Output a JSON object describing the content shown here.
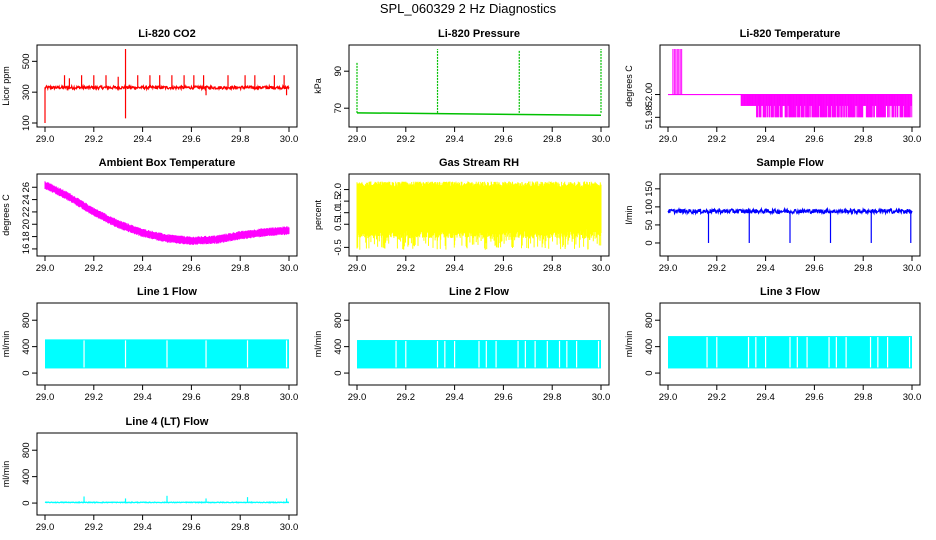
{
  "title": "SPL_060329  2 Hz Diagnostics",
  "chart_data": [
    {
      "type": "line",
      "title": "Li-820 CO2",
      "ylabel": "Licor ppm",
      "color": "#ff0000",
      "xlim": [
        29.0,
        30.0
      ],
      "ylim": [
        100,
        580
      ],
      "yticks": [
        "100",
        "300",
        "500"
      ],
      "ytick_values": [
        100,
        300,
        500
      ],
      "xticks": [
        "29.0",
        "29.2",
        "29.4",
        "29.6",
        "29.8",
        "30.0"
      ],
      "series": [
        {
          "kind": "baseline_spikes",
          "base": 330,
          "noise": 10,
          "spikes_up": [
            [
              29.08,
              410
            ],
            [
              29.1,
              390
            ],
            [
              29.15,
              410
            ],
            [
              29.2,
              410
            ],
            [
              29.25,
              410
            ],
            [
              29.3,
              400
            ],
            [
              29.33,
              580
            ],
            [
              29.38,
              410
            ],
            [
              29.43,
              410
            ],
            [
              29.47,
              410
            ],
            [
              29.52,
              410
            ],
            [
              29.57,
              410
            ],
            [
              29.61,
              410
            ],
            [
              29.65,
              410
            ],
            [
              29.75,
              410
            ],
            [
              29.82,
              410
            ],
            [
              29.86,
              410
            ],
            [
              29.94,
              410
            ],
            [
              29.98,
              410
            ]
          ],
          "spikes_down": [
            [
              29.0,
              100
            ],
            [
              29.33,
              130
            ],
            [
              29.66,
              280
            ],
            [
              29.99,
              280
            ]
          ]
        }
      ]
    },
    {
      "type": "line",
      "title": "Li-820 Pressure",
      "ylabel": "kPa",
      "color": "#00c000",
      "xlim": [
        29.0,
        30.0
      ],
      "ylim": [
        62,
        102
      ],
      "yticks": [
        "70",
        "90"
      ],
      "ytick_values": [
        70,
        90
      ],
      "xticks": [
        "29.0",
        "29.2",
        "29.4",
        "29.6",
        "29.8",
        "30.0"
      ],
      "series": [
        {
          "kind": "decay_spikes",
          "start": 67.5,
          "end": 66.2,
          "spikes_up": [
            [
              29.0,
              95
            ],
            [
              29.33,
              102
            ],
            [
              29.665,
              101
            ],
            [
              30.0,
              102
            ]
          ]
        }
      ]
    },
    {
      "type": "line",
      "title": "Li-820 Temperature",
      "ylabel": "degrees C",
      "color": "#ff00ff",
      "xlim": [
        29.0,
        30.0
      ],
      "ylim": [
        51.975,
        52.04
      ],
      "yticks": [
        "51.98",
        "52.00"
      ],
      "ytick_values": [
        51.98,
        52.0
      ],
      "xticks": [
        "29.0",
        "29.2",
        "29.4",
        "29.6",
        "29.8",
        "30.0"
      ],
      "series": [
        {
          "kind": "quantized",
          "levels": [
            51.99,
            52.0,
            52.01,
            52.04
          ]
        }
      ]
    },
    {
      "type": "area",
      "title": "Ambient Box Temperature",
      "ylabel": "degrees C",
      "color": "#ff00ff",
      "xlim": [
        29.0,
        30.0
      ],
      "ylim": [
        15.5,
        27.5
      ],
      "yticks": [
        "16",
        "18",
        "20",
        "22",
        "24",
        "26"
      ],
      "ytick_values": [
        16,
        18,
        20,
        22,
        24,
        26
      ],
      "xticks": [
        "29.0",
        "29.2",
        "29.4",
        "29.6",
        "29.8",
        "30.0"
      ],
      "series": [
        {
          "kind": "band",
          "centre": [
            [
              29.0,
              26.4
            ],
            [
              29.1,
              24.4
            ],
            [
              29.2,
              22.0
            ],
            [
              29.3,
              20.0
            ],
            [
              29.4,
              18.6
            ],
            [
              29.5,
              17.7
            ],
            [
              29.6,
              17.3
            ],
            [
              29.7,
              17.5
            ],
            [
              29.8,
              18.2
            ],
            [
              29.9,
              18.7
            ],
            [
              30.0,
              19.0
            ]
          ],
          "halfwidth": 0.7
        }
      ]
    },
    {
      "type": "area",
      "title": "Gas Stream RH",
      "ylabel": "percent",
      "color": "#ffff00",
      "xlim": [
        29.0,
        30.0
      ],
      "ylim": [
        -0.7,
        2.5
      ],
      "yticks": [
        "-0.5",
        "0.5",
        "1.0",
        "1.5",
        "2.0"
      ],
      "ytick_values": [
        -0.5,
        0.5,
        1.0,
        1.5,
        2.0
      ],
      "xticks": [
        "29.0",
        "29.2",
        "29.4",
        "29.6",
        "29.8",
        "30.0"
      ],
      "series": [
        {
          "kind": "noise_band",
          "low": 0.3,
          "high": 2.1,
          "min_dip": -0.6
        }
      ]
    },
    {
      "type": "line",
      "title": "Sample Flow",
      "ylabel": "l/min",
      "color": "#0000ff",
      "xlim": [
        29.0,
        30.0
      ],
      "ylim": [
        -25,
        180
      ],
      "yticks": [
        "0",
        "50",
        "100",
        "150"
      ],
      "ytick_values": [
        0,
        50,
        100,
        150
      ],
      "xticks": [
        "29.0",
        "29.2",
        "29.4",
        "29.6",
        "29.8",
        "30.0"
      ],
      "series": [
        {
          "kind": "baseline_spikes",
          "base": 88,
          "noise": 6,
          "spikes_down": [
            [
              29.166,
              0
            ],
            [
              29.333,
              0
            ],
            [
              29.5,
              0
            ],
            [
              29.666,
              0
            ],
            [
              29.833,
              0
            ],
            [
              29.995,
              0
            ]
          ],
          "spikes_up": []
        }
      ]
    },
    {
      "type": "area",
      "title": "Line 1 Flow",
      "ylabel": "ml/min",
      "color": "#00ffff",
      "xlim": [
        29.0,
        30.0
      ],
      "ylim": [
        -120,
        1000
      ],
      "yticks": [
        "0",
        "400",
        "800"
      ],
      "ytick_values": [
        0,
        400,
        800
      ],
      "xticks": [
        "29.0",
        "29.2",
        "29.4",
        "29.6",
        "29.8",
        "30.0"
      ],
      "series": [
        {
          "kind": "block",
          "low": 70,
          "high": 510,
          "gaps": [
            29.16,
            29.33,
            29.5,
            29.66,
            29.83,
            29.99
          ]
        }
      ]
    },
    {
      "type": "area",
      "title": "Line 2 Flow",
      "ylabel": "ml/min",
      "color": "#00ffff",
      "xlim": [
        29.0,
        30.0
      ],
      "ylim": [
        -120,
        1000
      ],
      "yticks": [
        "0",
        "400",
        "800"
      ],
      "ytick_values": [
        0,
        400,
        800
      ],
      "xticks": [
        "29.0",
        "29.2",
        "29.4",
        "29.6",
        "29.8",
        "30.0"
      ],
      "series": [
        {
          "kind": "block",
          "low": 70,
          "high": 500,
          "gaps": [
            29.16,
            29.2,
            29.33,
            29.36,
            29.4,
            29.5,
            29.53,
            29.57,
            29.66,
            29.69,
            29.73,
            29.78,
            29.83,
            29.86,
            29.9,
            29.99
          ]
        }
      ]
    },
    {
      "type": "area",
      "title": "Line 3 Flow",
      "ylabel": "ml/min",
      "color": "#00ffff",
      "xlim": [
        29.0,
        30.0
      ],
      "ylim": [
        -120,
        1000
      ],
      "yticks": [
        "0",
        "400",
        "800"
      ],
      "ytick_values": [
        0,
        400,
        800
      ],
      "xticks": [
        "29.0",
        "29.2",
        "29.4",
        "29.6",
        "29.8",
        "30.0"
      ],
      "series": [
        {
          "kind": "block",
          "low": 70,
          "high": 560,
          "gaps": [
            29.16,
            29.2,
            29.33,
            29.36,
            29.4,
            29.5,
            29.53,
            29.57,
            29.66,
            29.69,
            29.73,
            29.83,
            29.86,
            29.9,
            29.99
          ]
        }
      ]
    },
    {
      "type": "line",
      "title": "Line 4 (LT) Flow",
      "ylabel": "ml/min",
      "color": "#00ffff",
      "xlim": [
        29.0,
        30.0
      ],
      "ylim": [
        -120,
        1000
      ],
      "yticks": [
        "0",
        "400",
        "800"
      ],
      "ytick_values": [
        0,
        400,
        800
      ],
      "xticks": [
        "29.0",
        "29.2",
        "29.4",
        "29.6",
        "29.8",
        "30.0"
      ],
      "series": [
        {
          "kind": "baseline_spikes",
          "base": 10,
          "noise": 5,
          "spikes_up": [
            [
              29.16,
              100
            ],
            [
              29.33,
              70
            ],
            [
              29.5,
              110
            ],
            [
              29.66,
              70
            ],
            [
              29.83,
              90
            ],
            [
              29.99,
              70
            ]
          ],
          "spikes_down": []
        }
      ]
    }
  ]
}
